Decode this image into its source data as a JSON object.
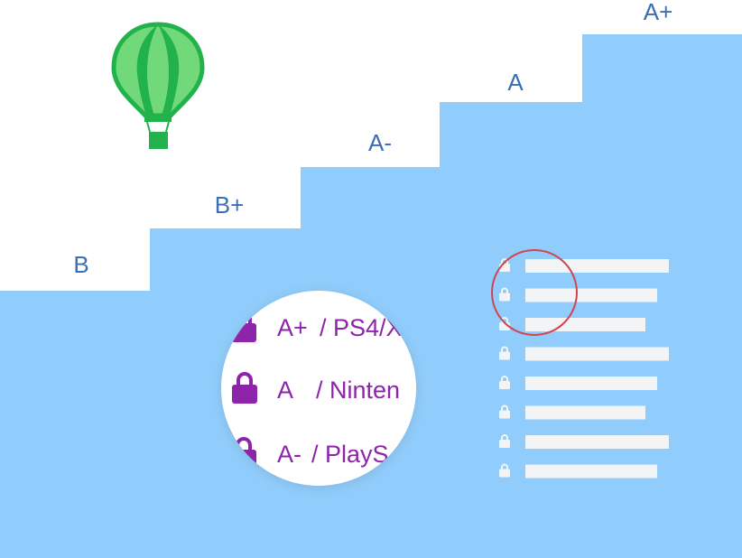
{
  "steps": [
    {
      "grade": "B"
    },
    {
      "grade": "B+"
    },
    {
      "grade": "A-"
    },
    {
      "grade": "A"
    },
    {
      "grade": "A+"
    }
  ],
  "magnifier_rows": [
    {
      "grade": "A+",
      "label": "/ PS4/X"
    },
    {
      "grade": "A",
      "label": "/ Ninten"
    },
    {
      "grade": "A-",
      "label": "/ PlayS"
    }
  ],
  "list_rows": 8,
  "colors": {
    "step_fill": "#90cdfc",
    "grade_text": "#3a6fb5",
    "balloon_dark": "#22b24c",
    "balloon_light": "#72d97a",
    "lock_purple": "#8e24aa",
    "list_bar": "#f3f4f6",
    "highlight_ring": "#d0464f"
  },
  "icons": [
    "hot-air-balloon-icon",
    "lock-icon"
  ]
}
